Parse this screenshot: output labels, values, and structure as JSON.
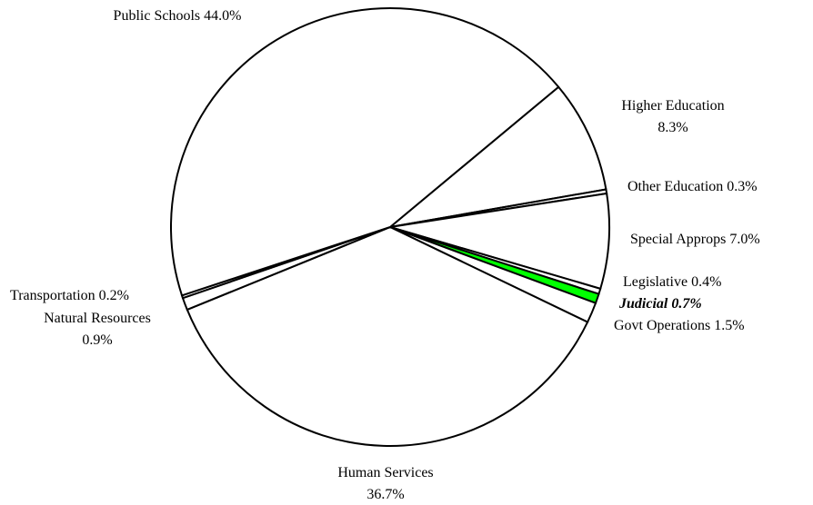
{
  "chart_data": {
    "type": "pie",
    "title": "",
    "slices": [
      {
        "label": "Higher Education",
        "value": 8.3,
        "pct_label": "8.3%",
        "color": "#ffffff"
      },
      {
        "label": "Other Education",
        "value": 0.3,
        "pct_label": "0.3%",
        "color": "#ffffff"
      },
      {
        "label": "Special Approps",
        "value": 7.0,
        "pct_label": "7.0%",
        "color": "#ffffff"
      },
      {
        "label": "Legislative",
        "value": 0.4,
        "pct_label": "0.4%",
        "color": "#ffffff"
      },
      {
        "label": "Judicial",
        "value": 0.7,
        "pct_label": "0.7%",
        "color": "#00ff00",
        "emphasized": true
      },
      {
        "label": "Govt Operations",
        "value": 1.5,
        "pct_label": "1.5%",
        "color": "#ffffff"
      },
      {
        "label": "Human Services",
        "value": 36.7,
        "pct_label": "36.7%",
        "color": "#ffffff"
      },
      {
        "label": "Natural Resources",
        "value": 0.9,
        "pct_label": "0.9%",
        "color": "#ffffff"
      },
      {
        "label": "Transportation",
        "value": 0.2,
        "pct_label": "0.2%",
        "color": "#ffffff"
      },
      {
        "label": "Public Schools",
        "value": 44.0,
        "pct_label": "44.0%",
        "color": "#ffffff"
      }
    ],
    "labels": [
      {
        "text": "Public Schools 44.0%"
      },
      {
        "text": "Higher Education"
      },
      {
        "text": "8.3%"
      },
      {
        "text": "Other Education 0.3%"
      },
      {
        "text": "Special Approps 7.0%"
      },
      {
        "text": "Legislative 0.4%"
      },
      {
        "text": "Judicial 0.7%"
      },
      {
        "text": "Govt Operations 1.5%"
      },
      {
        "text": "Transportation 0.2%"
      },
      {
        "text": "Natural Resources"
      },
      {
        "text": "0.9%"
      },
      {
        "text": "Human Services"
      },
      {
        "text": "36.7%"
      }
    ]
  }
}
